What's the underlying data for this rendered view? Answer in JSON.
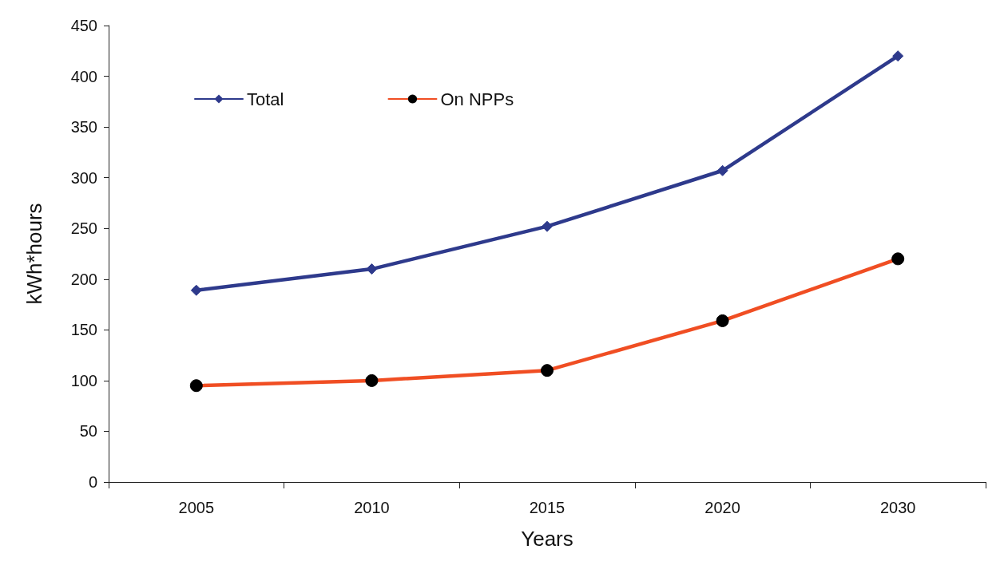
{
  "chart_data": {
    "type": "line",
    "xlabel": "Years",
    "ylabel": "kWh*hours",
    "categories": [
      "2005",
      "2010",
      "2015",
      "2020",
      "2030"
    ],
    "series": [
      {
        "name": "Total",
        "color": "#2e3a8c",
        "marker": "diamond",
        "values": [
          189,
          210,
          252,
          307,
          420
        ]
      },
      {
        "name": "On NPPs",
        "color": "#f04e23",
        "marker": "circle",
        "values": [
          95,
          100,
          110,
          159,
          220
        ]
      }
    ],
    "ylim": [
      0,
      450
    ],
    "yticks": [
      0,
      50,
      100,
      150,
      200,
      250,
      300,
      350,
      400,
      450
    ],
    "grid": false,
    "legend": "top left",
    "line_style": "solid"
  }
}
